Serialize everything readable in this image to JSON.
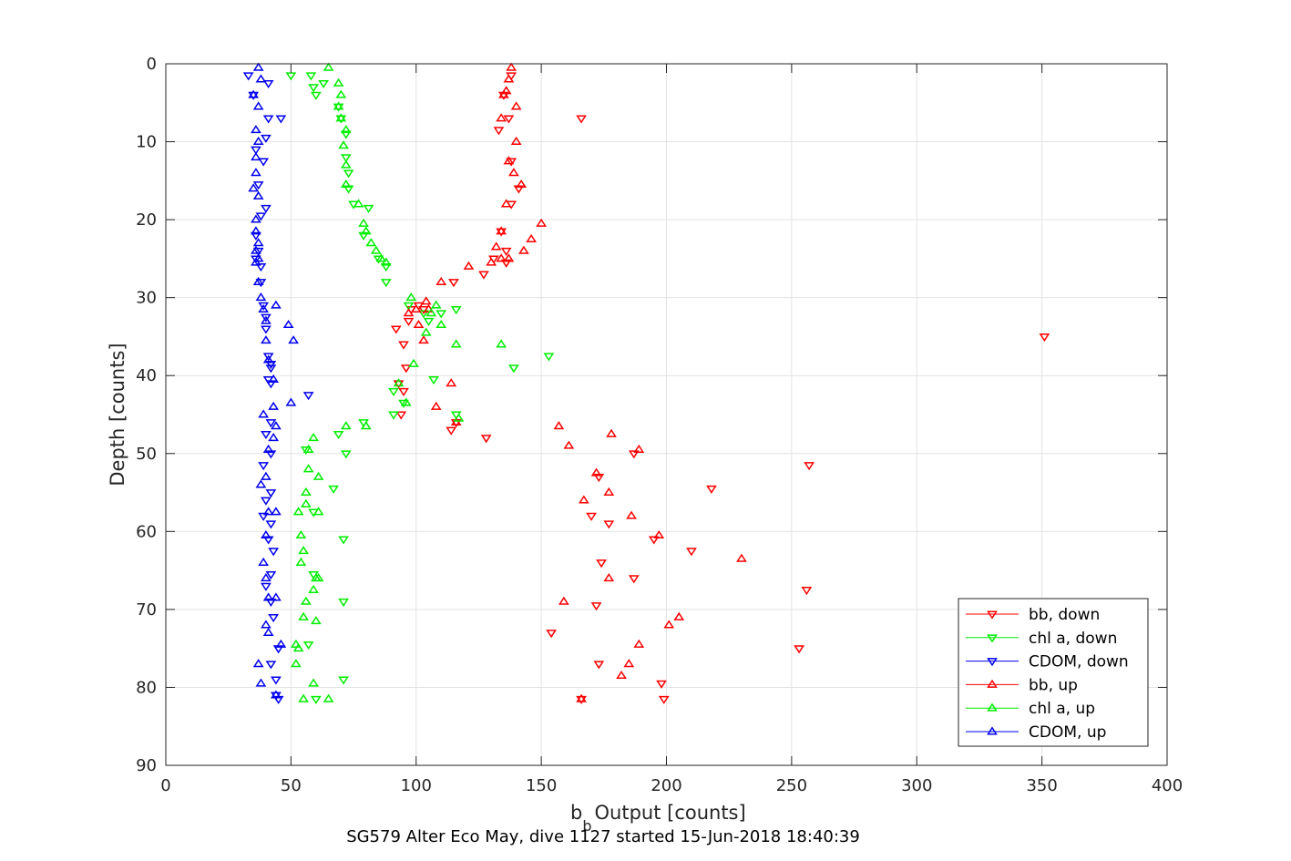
{
  "chart_data": {
    "type": "scatter",
    "title": "",
    "xlabel": "Output [counts]",
    "xlabel_symbol": "b",
    "xlabel_subscript": "b",
    "ylabel": "Depth [counts]",
    "caption": "SG579 Alter Eco May, dive 1127 started 15-Jun-2018 18:40:39",
    "xlim": [
      0,
      400
    ],
    "ylim": [
      0,
      90
    ],
    "y_reversed": true,
    "grid": true,
    "legend_position": "bottom-right",
    "xticks": [
      "0",
      "50",
      "100",
      "150",
      "200",
      "250",
      "300",
      "350",
      "400"
    ],
    "yticks": [
      "0",
      "10",
      "20",
      "30",
      "40",
      "50",
      "60",
      "70",
      "80",
      "90"
    ],
    "series": [
      {
        "name": "bb, down",
        "color": "#ff0000",
        "marker": "triangle-down",
        "points": [
          [
            138,
            1.5
          ],
          [
            135,
            4
          ],
          [
            137,
            7
          ],
          [
            133,
            8.5
          ],
          [
            166,
            7
          ],
          [
            138,
            12.5
          ],
          [
            141,
            16
          ],
          [
            138,
            18
          ],
          [
            134,
            21.5
          ],
          [
            136,
            24
          ],
          [
            136,
            25.5
          ],
          [
            131,
            25
          ],
          [
            127,
            27
          ],
          [
            115,
            28
          ],
          [
            103,
            31.5
          ],
          [
            97,
            33
          ],
          [
            101,
            31
          ],
          [
            98,
            31.5
          ],
          [
            92,
            34
          ],
          [
            95,
            36
          ],
          [
            96,
            39
          ],
          [
            93,
            41
          ],
          [
            95,
            42
          ],
          [
            94,
            45
          ],
          [
            351,
            35
          ],
          [
            114,
            47
          ],
          [
            128,
            48
          ],
          [
            116,
            46
          ],
          [
            187,
            50
          ],
          [
            173,
            53
          ],
          [
            257,
            51.5
          ],
          [
            218,
            54.5
          ],
          [
            170,
            58
          ],
          [
            177,
            59
          ],
          [
            195,
            61
          ],
          [
            210,
            62.5
          ],
          [
            174,
            64
          ],
          [
            187,
            66
          ],
          [
            256,
            67.5
          ],
          [
            172,
            69.5
          ],
          [
            154,
            73
          ],
          [
            253,
            75
          ],
          [
            173,
            77
          ],
          [
            198,
            79.5
          ],
          [
            199,
            81.5
          ],
          [
            166,
            81.5
          ]
        ]
      },
      {
        "name": "chl a, down",
        "color": "#00ee00",
        "marker": "triangle-down",
        "points": [
          [
            50,
            1.5
          ],
          [
            58,
            1.5
          ],
          [
            63,
            2.5
          ],
          [
            59,
            3
          ],
          [
            60,
            4
          ],
          [
            69,
            5.5
          ],
          [
            70,
            7
          ],
          [
            72,
            9
          ],
          [
            72,
            12
          ],
          [
            73,
            14
          ],
          [
            73,
            16
          ],
          [
            75,
            18
          ],
          [
            81,
            18.5
          ],
          [
            79,
            22
          ],
          [
            85,
            25
          ],
          [
            88,
            26
          ],
          [
            88,
            28
          ],
          [
            97,
            31
          ],
          [
            103,
            32
          ],
          [
            105,
            33
          ],
          [
            110,
            32
          ],
          [
            116,
            31.5
          ],
          [
            153,
            37.5
          ],
          [
            139,
            39
          ],
          [
            107,
            40.5
          ],
          [
            91,
            42
          ],
          [
            95,
            43.5
          ],
          [
            91,
            45
          ],
          [
            116,
            45
          ],
          [
            79,
            46
          ],
          [
            69,
            47.5
          ],
          [
            56,
            49.5
          ],
          [
            72,
            50
          ],
          [
            67,
            54.5
          ],
          [
            59,
            57.5
          ],
          [
            71,
            61
          ],
          [
            59,
            65.5
          ],
          [
            71,
            69
          ],
          [
            57,
            74.5
          ],
          [
            71,
            79
          ],
          [
            60,
            81.5
          ]
        ]
      },
      {
        "name": "CDOM, down",
        "color": "#0000ee",
        "marker": "triangle-down",
        "points": [
          [
            33,
            1.5
          ],
          [
            41,
            2.5
          ],
          [
            35,
            4
          ],
          [
            41,
            7
          ],
          [
            46,
            7
          ],
          [
            40,
            9.5
          ],
          [
            36,
            11
          ],
          [
            39,
            12.5
          ],
          [
            37,
            15.5
          ],
          [
            40,
            18.5
          ],
          [
            38,
            19.5
          ],
          [
            36,
            22
          ],
          [
            37,
            24
          ],
          [
            36,
            25
          ],
          [
            38,
            26
          ],
          [
            38,
            28
          ],
          [
            39,
            31
          ],
          [
            40,
            32.5
          ],
          [
            40,
            34
          ],
          [
            41,
            37.5
          ],
          [
            42,
            38.5
          ],
          [
            42,
            39
          ],
          [
            41,
            40.5
          ],
          [
            42,
            41
          ],
          [
            57,
            42.5
          ],
          [
            42,
            46
          ],
          [
            40,
            47.5
          ],
          [
            42,
            50
          ],
          [
            39,
            51.5
          ],
          [
            42,
            55
          ],
          [
            40,
            56
          ],
          [
            39,
            58
          ],
          [
            42,
            59
          ],
          [
            41,
            61
          ],
          [
            43,
            62.5
          ],
          [
            42,
            65.5
          ],
          [
            40,
            67
          ],
          [
            42,
            69
          ],
          [
            43,
            71
          ],
          [
            45,
            75
          ],
          [
            42,
            77
          ],
          [
            44,
            79
          ],
          [
            44,
            81
          ],
          [
            45,
            81.5
          ]
        ]
      },
      {
        "name": "bb, up",
        "color": "#ff0000",
        "marker": "triangle-up",
        "points": [
          [
            138,
            0.5
          ],
          [
            137,
            2
          ],
          [
            136,
            3.5
          ],
          [
            135,
            4
          ],
          [
            140,
            5.5
          ],
          [
            134,
            7
          ],
          [
            140,
            10
          ],
          [
            137,
            12.5
          ],
          [
            139,
            14
          ],
          [
            142,
            15.5
          ],
          [
            136,
            18
          ],
          [
            150,
            20.5
          ],
          [
            134,
            21.5
          ],
          [
            146,
            22.5
          ],
          [
            132,
            23.5
          ],
          [
            143,
            24
          ],
          [
            134,
            25
          ],
          [
            137,
            25
          ],
          [
            130,
            25.5
          ],
          [
            121,
            26
          ],
          [
            110,
            28
          ],
          [
            104,
            30.5
          ],
          [
            100,
            31.5
          ],
          [
            105,
            31.5
          ],
          [
            101,
            33.5
          ],
          [
            97,
            32
          ],
          [
            103,
            35.5
          ],
          [
            114,
            41
          ],
          [
            108,
            44
          ],
          [
            116,
            46
          ],
          [
            157,
            46.5
          ],
          [
            178,
            47.5
          ],
          [
            161,
            49
          ],
          [
            189,
            49.5
          ],
          [
            172,
            52.5
          ],
          [
            177,
            55
          ],
          [
            167,
            56
          ],
          [
            186,
            58
          ],
          [
            197,
            60.5
          ],
          [
            230,
            63.5
          ],
          [
            177,
            66
          ],
          [
            159,
            69
          ],
          [
            205,
            71
          ],
          [
            201,
            72
          ],
          [
            189,
            74.5
          ],
          [
            185,
            77
          ],
          [
            182,
            78.5
          ],
          [
            166,
            81.5
          ]
        ]
      },
      {
        "name": "chl a, up",
        "color": "#00ee00",
        "marker": "triangle-up",
        "points": [
          [
            65,
            0.5
          ],
          [
            69,
            2.5
          ],
          [
            70,
            4
          ],
          [
            69,
            5.5
          ],
          [
            70,
            7
          ],
          [
            72,
            8.5
          ],
          [
            71,
            10.5
          ],
          [
            72,
            13
          ],
          [
            72,
            15.5
          ],
          [
            77,
            18
          ],
          [
            79,
            20.5
          ],
          [
            80,
            21.5
          ],
          [
            82,
            23
          ],
          [
            84,
            24
          ],
          [
            86,
            25
          ],
          [
            88,
            25.5
          ],
          [
            98,
            30
          ],
          [
            108,
            31
          ],
          [
            106,
            32
          ],
          [
            110,
            33.5
          ],
          [
            104,
            34.5
          ],
          [
            116,
            36
          ],
          [
            134,
            36
          ],
          [
            99,
            38.5
          ],
          [
            93,
            41
          ],
          [
            96,
            43.5
          ],
          [
            117,
            45.5
          ],
          [
            72,
            46.5
          ],
          [
            80,
            46.5
          ],
          [
            59,
            48
          ],
          [
            57,
            49.5
          ],
          [
            57,
            52
          ],
          [
            61,
            53
          ],
          [
            56,
            55
          ],
          [
            56,
            56.5
          ],
          [
            53,
            57.5
          ],
          [
            61,
            57.5
          ],
          [
            54,
            60.5
          ],
          [
            55,
            62.5
          ],
          [
            54,
            64
          ],
          [
            60,
            66
          ],
          [
            61,
            66
          ],
          [
            59,
            67.5
          ],
          [
            56,
            69
          ],
          [
            55,
            71
          ],
          [
            60,
            71.5
          ],
          [
            52,
            74.5
          ],
          [
            53,
            75
          ],
          [
            52,
            77
          ],
          [
            59,
            79.5
          ],
          [
            55,
            81.5
          ],
          [
            65,
            81.5
          ]
        ]
      },
      {
        "name": "CDOM, up",
        "color": "#0000ee",
        "marker": "triangle-up",
        "points": [
          [
            37,
            0.5
          ],
          [
            38,
            2
          ],
          [
            35,
            4
          ],
          [
            37,
            5.5
          ],
          [
            36,
            8.5
          ],
          [
            37,
            10
          ],
          [
            36,
            12
          ],
          [
            36,
            14
          ],
          [
            35,
            16
          ],
          [
            37,
            17
          ],
          [
            36,
            20
          ],
          [
            36,
            21.5
          ],
          [
            37,
            23
          ],
          [
            36,
            24
          ],
          [
            37,
            25
          ],
          [
            36,
            25.5
          ],
          [
            37,
            28
          ],
          [
            38,
            30
          ],
          [
            39,
            31.5
          ],
          [
            40,
            33
          ],
          [
            44,
            31
          ],
          [
            49,
            33.5
          ],
          [
            51,
            35.5
          ],
          [
            40,
            35.5
          ],
          [
            41,
            38
          ],
          [
            43,
            40.5
          ],
          [
            50,
            43.5
          ],
          [
            43,
            44
          ],
          [
            39,
            45
          ],
          [
            44,
            46.5
          ],
          [
            43,
            48
          ],
          [
            41,
            49.5
          ],
          [
            40,
            53
          ],
          [
            38,
            54
          ],
          [
            44,
            57.5
          ],
          [
            41,
            57.5
          ],
          [
            40,
            60.5
          ],
          [
            39,
            64
          ],
          [
            40,
            66
          ],
          [
            41,
            68.5
          ],
          [
            44,
            68.5
          ],
          [
            40,
            72
          ],
          [
            41,
            73
          ],
          [
            46,
            74.5
          ],
          [
            37,
            77
          ],
          [
            38,
            79.5
          ],
          [
            44,
            81
          ]
        ]
      }
    ]
  }
}
